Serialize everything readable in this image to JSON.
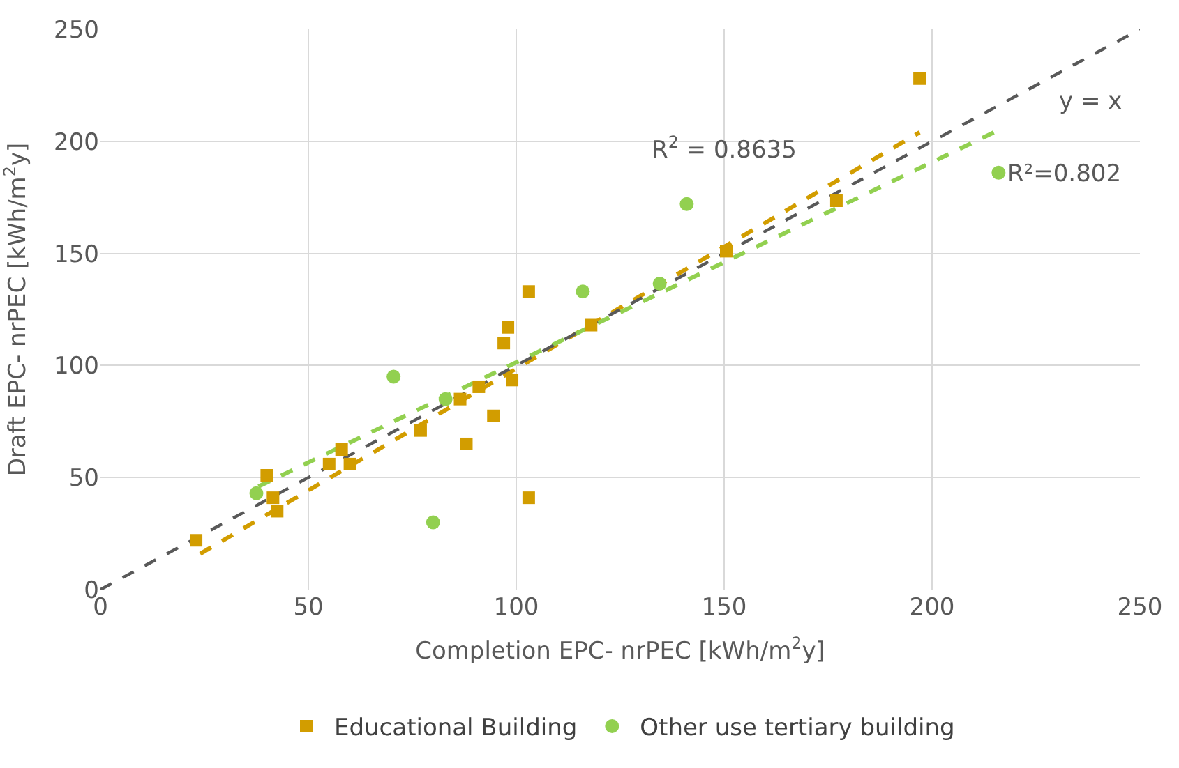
{
  "chart_data": {
    "type": "scatter",
    "xlabel": "Completion EPC- nrPEC [kWh/m$^{2}$y]",
    "ylabel": "Draft EPC- nrPEC [kWh/m$^{2}$y]",
    "xlim": [
      0,
      250
    ],
    "ylim": [
      0,
      250
    ],
    "xticks": [
      0,
      50,
      100,
      150,
      200,
      250
    ],
    "yticks": [
      0,
      50,
      100,
      150,
      200,
      250
    ],
    "grid": true,
    "legend": "bottom",
    "series": [
      {
        "name": "Educational Building",
        "color": "#d29d00",
        "marker": "square",
        "x": [
          23,
          40,
          41.5,
          42.5,
          55,
          58,
          60,
          77,
          86.5,
          88,
          91,
          94.5,
          97,
          98,
          99,
          103,
          103,
          118,
          150.5,
          177,
          197
        ],
        "values": [
          22,
          51,
          41,
          35,
          56,
          62.5,
          56,
          71,
          85,
          65,
          90.5,
          77.5,
          110,
          117,
          93.5,
          41,
          133,
          118,
          151,
          173.5,
          228
        ]
      },
      {
        "name": "Other use tertiary building",
        "color": "#92d050",
        "marker": "circle",
        "x": [
          37.5,
          70.5,
          80,
          83,
          116,
          134.5,
          141,
          216
        ],
        "values": [
          43,
          95,
          30,
          85,
          133,
          136.5,
          172,
          186
        ]
      },
      {
        "type": "line",
        "color": "#d29d00",
        "line_style": "dashed",
        "x": [
          24,
          197
        ],
        "values": [
          16,
          204
        ]
      },
      {
        "type": "line",
        "color": "#92d050",
        "line_style": "dashed",
        "x": [
          38,
          216
        ],
        "values": [
          46,
          205
        ]
      },
      {
        "type": "line",
        "color": "#595959",
        "line_style": "dashed",
        "x": [
          0,
          250
        ],
        "values": [
          0,
          250
        ]
      }
    ],
    "annotations": [
      "y = x",
      "R$^{2}$ = 0.8635",
      "R²=0.802"
    ]
  }
}
